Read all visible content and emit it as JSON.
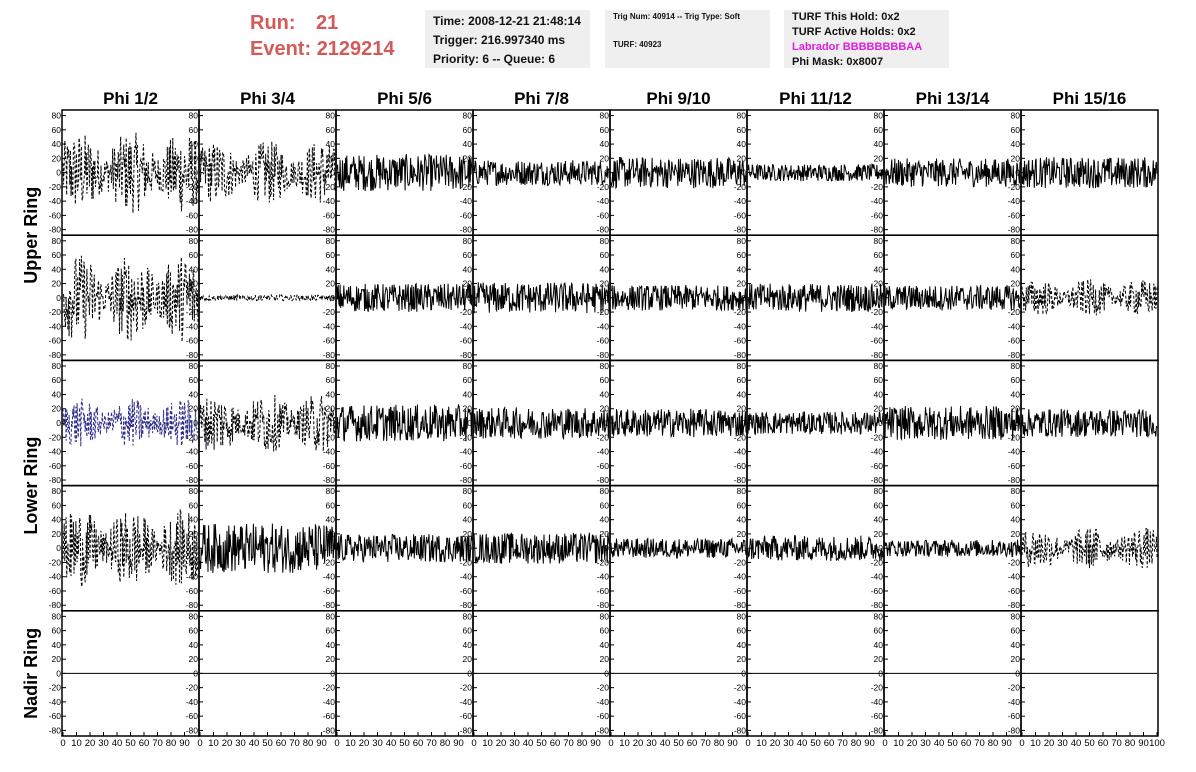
{
  "header": {
    "run_label": "Run:",
    "run_value": "21",
    "event_label": "Event:",
    "event_value": "2129214"
  },
  "info_box1": {
    "time": "Time: 2008-12-21 21:48:14",
    "trigger": "Trigger: 216.997340 ms",
    "priority": "Priority: 6 -- Queue: 6"
  },
  "info_box2": {
    "trig": "Trig Num: 40914 -- Trig Type: Soft",
    "turf": "TURF: 40923"
  },
  "info_box3": {
    "hold": "TURF This Hold: 0x2",
    "active": "TURF Active Holds: 0x2",
    "labrador": "Labrador BBBBBBBBAA",
    "mask": "Phi Mask: 0x8007"
  },
  "colors": {
    "labrador": "#e020e0",
    "run_text": "#d45a5a",
    "info_bg": "#efefef"
  },
  "chart_data": {
    "type": "line",
    "columns": [
      "Phi 1/2",
      "Phi 3/4",
      "Phi 5/6",
      "Phi 7/8",
      "Phi 9/10",
      "Phi 11/12",
      "Phi 13/14",
      "Phi 15/16"
    ],
    "row_labels": [
      "Upper Ring",
      "Lower Ring",
      "Nadir Ring"
    ],
    "ylim": [
      -85,
      85
    ],
    "y_ticks": [
      80,
      60,
      40,
      20,
      0,
      -20,
      -40,
      -60,
      -80
    ],
    "xlim": [
      0,
      100
    ],
    "x_tick_labels": [
      "0",
      "10",
      "20",
      "30",
      "40",
      "50",
      "60",
      "70",
      "80",
      "90",
      "100"
    ],
    "panels": [
      [
        {
          "amp": 58,
          "style": "dashed",
          "bursts": true
        },
        {
          "amp": 45,
          "style": "dashed",
          "bursts": true
        },
        {
          "amp": 26,
          "style": "solid"
        },
        {
          "amp": 18,
          "style": "solid"
        },
        {
          "amp": 22,
          "style": "solid"
        },
        {
          "amp": 12,
          "style": "solid"
        },
        {
          "amp": 20,
          "style": "solid"
        },
        {
          "amp": 22,
          "style": "solid"
        }
      ],
      [
        {
          "amp": 62,
          "style": "dashed",
          "bursts": true
        },
        {
          "amp": 4,
          "style": "dashed"
        },
        {
          "amp": 20,
          "style": "solid"
        },
        {
          "amp": 22,
          "style": "solid"
        },
        {
          "amp": 18,
          "style": "solid"
        },
        {
          "amp": 20,
          "style": "solid"
        },
        {
          "amp": 18,
          "style": "solid"
        },
        {
          "amp": 26,
          "style": "dashed",
          "bursts": true
        }
      ],
      [
        {
          "amp": 35,
          "style": "dashed",
          "bursts": true,
          "color": "#2a2a8a"
        },
        {
          "amp": 42,
          "style": "dashed",
          "bursts": true
        },
        {
          "amp": 26,
          "style": "solid"
        },
        {
          "amp": 22,
          "style": "solid"
        },
        {
          "amp": 20,
          "style": "solid"
        },
        {
          "amp": 16,
          "style": "solid"
        },
        {
          "amp": 24,
          "style": "solid"
        },
        {
          "amp": 20,
          "style": "solid"
        }
      ],
      [
        {
          "amp": 55,
          "style": "dashed",
          "bursts": true
        },
        {
          "amp": 35,
          "style": "solid"
        },
        {
          "amp": 20,
          "style": "solid"
        },
        {
          "amp": 22,
          "style": "solid"
        },
        {
          "amp": 14,
          "style": "solid"
        },
        {
          "amp": 18,
          "style": "solid"
        },
        {
          "amp": 12,
          "style": "solid"
        },
        {
          "amp": 30,
          "style": "dashed",
          "bursts": true
        }
      ],
      [
        {
          "amp": 0,
          "style": "solid"
        },
        {
          "amp": 0,
          "style": "solid"
        },
        {
          "amp": 0,
          "style": "solid"
        },
        {
          "amp": 0,
          "style": "solid"
        },
        {
          "amp": 0,
          "style": "solid"
        },
        {
          "amp": 0,
          "style": "solid"
        },
        {
          "amp": 0,
          "style": "solid"
        },
        {
          "amp": 0,
          "style": "solid"
        }
      ]
    ]
  }
}
